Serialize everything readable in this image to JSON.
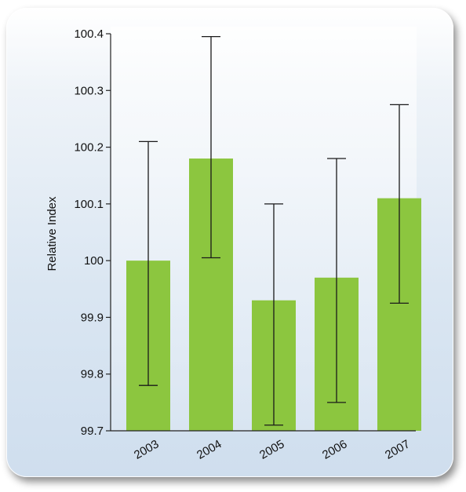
{
  "chart_data": {
    "type": "bar",
    "categories": [
      "2003",
      "2004",
      "2005",
      "2006",
      "2007"
    ],
    "series": [
      {
        "values": [
          100.0,
          100.18,
          99.93,
          99.97,
          100.11
        ],
        "error_low": [
          99.78,
          100.005,
          99.71,
          99.75,
          99.925
        ],
        "error_high": [
          100.21,
          100.395,
          100.1,
          100.18,
          100.275
        ]
      }
    ],
    "xlabel": "",
    "ylabel": "Relative Index",
    "ylim": [
      99.7,
      100.4
    ],
    "yticks": [
      99.7,
      99.8,
      99.9,
      100,
      100.1,
      100.2,
      100.3,
      100.4
    ],
    "ytick_labels": [
      "99.7",
      "99.8",
      "99.9",
      "100",
      "100.1",
      "100.2",
      "100.3",
      "100.4"
    ],
    "grid": false,
    "bar_color": "#8cc63f",
    "error_bar_color": "#1a1a1a"
  }
}
